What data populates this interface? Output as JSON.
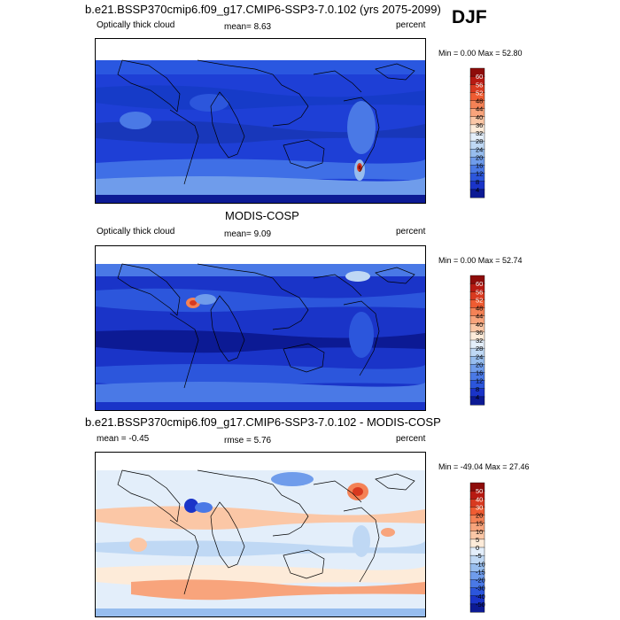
{
  "season": "DJF",
  "panels": [
    {
      "title": "b.e21.BSSP370cmip6.f09_g17.CMIP6-SSP3-7.0.102 (yrs 2075-2099)",
      "left_label": "Optically thick cloud",
      "center_label": "mean=  8.63",
      "right_label": "percent",
      "minmax": "Min =   0.00 Max =  52.80"
    },
    {
      "title": "MODIS-COSP",
      "left_label": "Optically thick cloud",
      "center_label": "mean=  9.09",
      "right_label": "percent",
      "minmax": "Min =   0.00 Max =  52.74"
    },
    {
      "title": "b.e21.BSSP370cmip6.f09_g17.CMIP6-SSP3-7.0.102 - MODIS-COSP",
      "left_label": "mean =  -0.45",
      "center_label": "rmse =  5.76",
      "right_label": "percent",
      "minmax": "Min = -49.04 Max =  27.46"
    }
  ],
  "chart_data": [
    {
      "type": "heatmap",
      "title": "b.e21.BSSP370cmip6.f09_g17.CMIP6-SSP3-7.0.102 (yrs 2075-2099)",
      "variable": "Optically thick cloud",
      "units": "percent",
      "mean": 8.63,
      "min": 0.0,
      "max": 52.8,
      "colorbar_levels": [
        "60",
        "56",
        "52",
        "48",
        "44",
        "40",
        "36",
        "32",
        "28",
        "24",
        "20",
        "16",
        "12",
        "8",
        "4"
      ],
      "colorbar_colors": [
        "#8e0c0a",
        "#b71a12",
        "#d83a20",
        "#ef5c32",
        "#f48256",
        "#f8a47c",
        "#fbc7a6",
        "#fdebd9",
        "#e3eefa",
        "#bfd8f4",
        "#97bdee",
        "#6f9ceb",
        "#4a79e6",
        "#2c56dc",
        "#1a34c8",
        "#0c1a94"
      ]
    },
    {
      "type": "heatmap",
      "title": "MODIS-COSP",
      "variable": "Optically thick cloud",
      "units": "percent",
      "mean": 9.09,
      "min": 0.0,
      "max": 52.74,
      "colorbar_levels": [
        "60",
        "56",
        "52",
        "48",
        "44",
        "40",
        "36",
        "32",
        "28",
        "24",
        "20",
        "16",
        "12",
        "8",
        "4"
      ],
      "colorbar_colors": [
        "#8e0c0a",
        "#b71a12",
        "#d83a20",
        "#ef5c32",
        "#f48256",
        "#f8a47c",
        "#fbc7a6",
        "#fdebd9",
        "#e3eefa",
        "#bfd8f4",
        "#97bdee",
        "#6f9ceb",
        "#4a79e6",
        "#2c56dc",
        "#1a34c8",
        "#0c1a94"
      ]
    },
    {
      "type": "heatmap",
      "title": "b.e21.BSSP370cmip6.f09_g17.CMIP6-SSP3-7.0.102 - MODIS-COSP",
      "units": "percent",
      "mean": -0.45,
      "rmse": 5.76,
      "min": -49.04,
      "max": 27.46,
      "colorbar_levels": [
        "50",
        "40",
        "30",
        "20",
        "15",
        "10",
        "5",
        "0",
        "-5",
        "-10",
        "-15",
        "-20",
        "-30",
        "-40",
        "-50"
      ],
      "colorbar_colors": [
        "#8e0c0a",
        "#b71a12",
        "#d83a20",
        "#ef5c32",
        "#f48256",
        "#f8a47c",
        "#fbc7a6",
        "#fdebd9",
        "#e3eefa",
        "#bfd8f4",
        "#97bdee",
        "#6f9ceb",
        "#4a79e6",
        "#2c56dc",
        "#1a34c8",
        "#0c1a94"
      ]
    }
  ]
}
